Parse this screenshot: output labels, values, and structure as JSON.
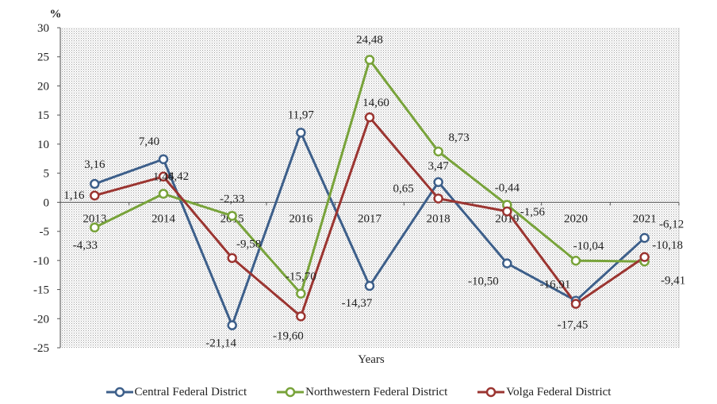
{
  "chart_data": {
    "type": "line",
    "title": "",
    "xlabel": "Years",
    "ylabel": "%",
    "ylim": [
      -25,
      30
    ],
    "yticks": [
      30,
      25,
      20,
      15,
      10,
      5,
      0,
      -5,
      -10,
      -15,
      -20,
      -25
    ],
    "categories": [
      "2013",
      "2014",
      "2015",
      "2016",
      "2017",
      "2018",
      "2019",
      "2020",
      "2021"
    ],
    "grid": true,
    "legend_position": "bottom",
    "series": [
      {
        "name": "Central Federal District",
        "color": "#3d5f8a",
        "values": [
          3.16,
          7.4,
          -21.14,
          11.97,
          -14.37,
          3.47,
          -10.5,
          -16.91,
          -6.12
        ],
        "labels": [
          "3,16",
          "7,40",
          "-21,14",
          "11,97",
          "-14,37",
          "3,47",
          "-10,50",
          "-16,91",
          "-6,12"
        ]
      },
      {
        "name": "Northwestern Federal District",
        "color": "#78a33a",
        "values": [
          -4.33,
          1.46,
          -2.33,
          -15.7,
          24.48,
          8.73,
          -0.44,
          -10.04,
          -10.18
        ],
        "labels": [
          "-4,33",
          "1,46",
          "-2,33",
          "-15,70",
          "24,48",
          "8,73",
          "-0,44",
          "-10,04",
          "-10,18"
        ]
      },
      {
        "name": "Volga Federal District",
        "color": "#9b3531",
        "values": [
          1.16,
          4.42,
          -9.58,
          -19.6,
          14.6,
          0.65,
          -1.56,
          -17.45,
          -9.41
        ],
        "labels": [
          "1,16",
          "4,42",
          "-9,58",
          "-19,60",
          "14,60",
          "0,65",
          "-1,56",
          "-17,45",
          "-9,41"
        ]
      }
    ]
  }
}
